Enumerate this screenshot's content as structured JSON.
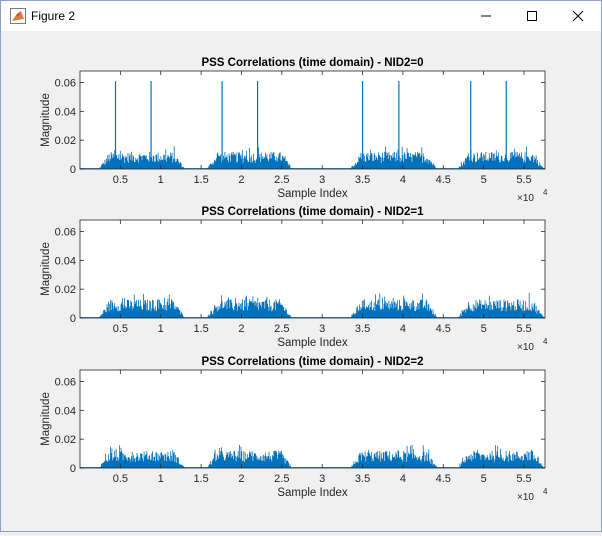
{
  "window": {
    "title": "Figure 2",
    "minimize_glyph": "—",
    "maximize_glyph": "☐",
    "close_glyph": "✕",
    "icon": "matlab-figure-icon"
  },
  "colors": {
    "series": "#0072bd",
    "axes": "#262626",
    "background": "#ffffff",
    "figure": "#f0f0f0"
  },
  "chart_data": [
    {
      "type": "line",
      "title": "PSS Correlations (time domain) - NID2=0",
      "xlabel": "Sample Index",
      "ylabel": "Magnitude",
      "xlim": [
        0,
        57600
      ],
      "ylim": [
        0,
        0.068
      ],
      "xticks": [
        5000,
        10000,
        15000,
        20000,
        25000,
        30000,
        35000,
        40000,
        45000,
        50000,
        55000
      ],
      "xtick_labels": [
        "0.5",
        "1",
        "1.5",
        "2",
        "2.5",
        "3",
        "3.5",
        "4",
        "4.5",
        "5",
        "5.5"
      ],
      "yticks": [
        0,
        0.02,
        0.04,
        0.06
      ],
      "ytick_labels": [
        "0",
        "0.02",
        "0.04",
        "0.06"
      ],
      "x_exponent_label": "×10",
      "x_exponent_power": "4",
      "bursts": [
        [
          2300,
          13000
        ],
        [
          15700,
          26300
        ],
        [
          33500,
          44300
        ],
        [
          46800,
          57500
        ]
      ],
      "burst_level": 0.012,
      "peaks": [
        {
          "x": 4400,
          "y": 0.061
        },
        {
          "x": 8800,
          "y": 0.061
        },
        {
          "x": 17600,
          "y": 0.061
        },
        {
          "x": 22000,
          "y": 0.061
        },
        {
          "x": 35000,
          "y": 0.061
        },
        {
          "x": 39500,
          "y": 0.061
        },
        {
          "x": 48400,
          "y": 0.061
        },
        {
          "x": 52800,
          "y": 0.061
        }
      ],
      "grid": false
    },
    {
      "type": "line",
      "title": "PSS Correlations (time domain) - NID2=1",
      "xlabel": "Sample Index",
      "ylabel": "Magnitude",
      "xlim": [
        0,
        57600
      ],
      "ylim": [
        0,
        0.068
      ],
      "xticks": [
        5000,
        10000,
        15000,
        20000,
        25000,
        30000,
        35000,
        40000,
        45000,
        50000,
        55000
      ],
      "xtick_labels": [
        "0.5",
        "1",
        "1.5",
        "2",
        "2.5",
        "3",
        "3.5",
        "4",
        "4.5",
        "5",
        "5.5"
      ],
      "yticks": [
        0,
        0.02,
        0.04,
        0.06
      ],
      "ytick_labels": [
        "0",
        "0.02",
        "0.04",
        "0.06"
      ],
      "x_exponent_label": "×10",
      "x_exponent_power": "4",
      "bursts": [
        [
          2300,
          13000
        ],
        [
          15700,
          26300
        ],
        [
          33500,
          44300
        ],
        [
          46800,
          57500
        ]
      ],
      "burst_level": 0.013,
      "peaks": [],
      "grid": false
    },
    {
      "type": "line",
      "title": "PSS Correlations (time domain) - NID2=2",
      "xlabel": "Sample Index",
      "ylabel": "Magnitude",
      "xlim": [
        0,
        57600
      ],
      "ylim": [
        0,
        0.068
      ],
      "xticks": [
        5000,
        10000,
        15000,
        20000,
        25000,
        30000,
        35000,
        40000,
        45000,
        50000,
        55000
      ],
      "xtick_labels": [
        "0.5",
        "1",
        "1.5",
        "2",
        "2.5",
        "3",
        "3.5",
        "4",
        "4.5",
        "5",
        "5.5"
      ],
      "yticks": [
        0,
        0.02,
        0.04,
        0.06
      ],
      "ytick_labels": [
        "0",
        "0.02",
        "0.04",
        "0.06"
      ],
      "x_exponent_label": "×10",
      "x_exponent_power": "4",
      "bursts": [
        [
          2300,
          13000
        ],
        [
          15700,
          26300
        ],
        [
          33500,
          44300
        ],
        [
          46800,
          57500
        ]
      ],
      "burst_level": 0.012,
      "peaks": [],
      "grid": false
    }
  ]
}
